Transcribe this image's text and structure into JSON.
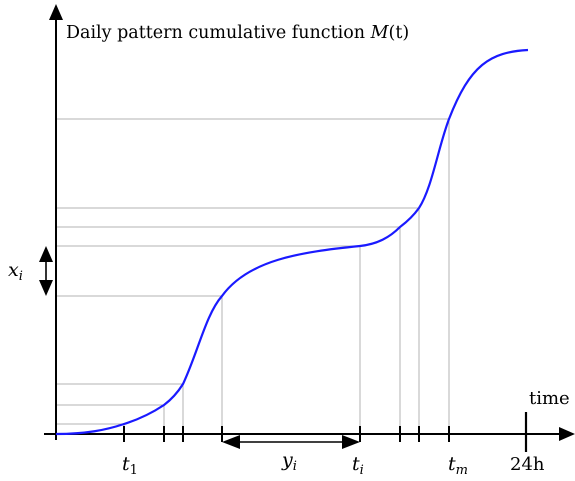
{
  "title": {
    "text": "Daily pattern cumulative function ",
    "math_symbol": "M",
    "math_args": "(t)"
  },
  "x_axis": {
    "label": "time",
    "end_label": "24h"
  },
  "labels": {
    "t1_base": "t",
    "t1_sub": "1",
    "ti_base": "t",
    "ti_sub": "i",
    "tm_base": "t",
    "tm_sub": "m",
    "yi_base": "y",
    "yi_sub": "i",
    "xi_base": "x",
    "xi_sub": "i"
  },
  "colors": {
    "curve": "#1a1aff",
    "guide": "#b3b3b3",
    "axis": "#000000"
  }
}
